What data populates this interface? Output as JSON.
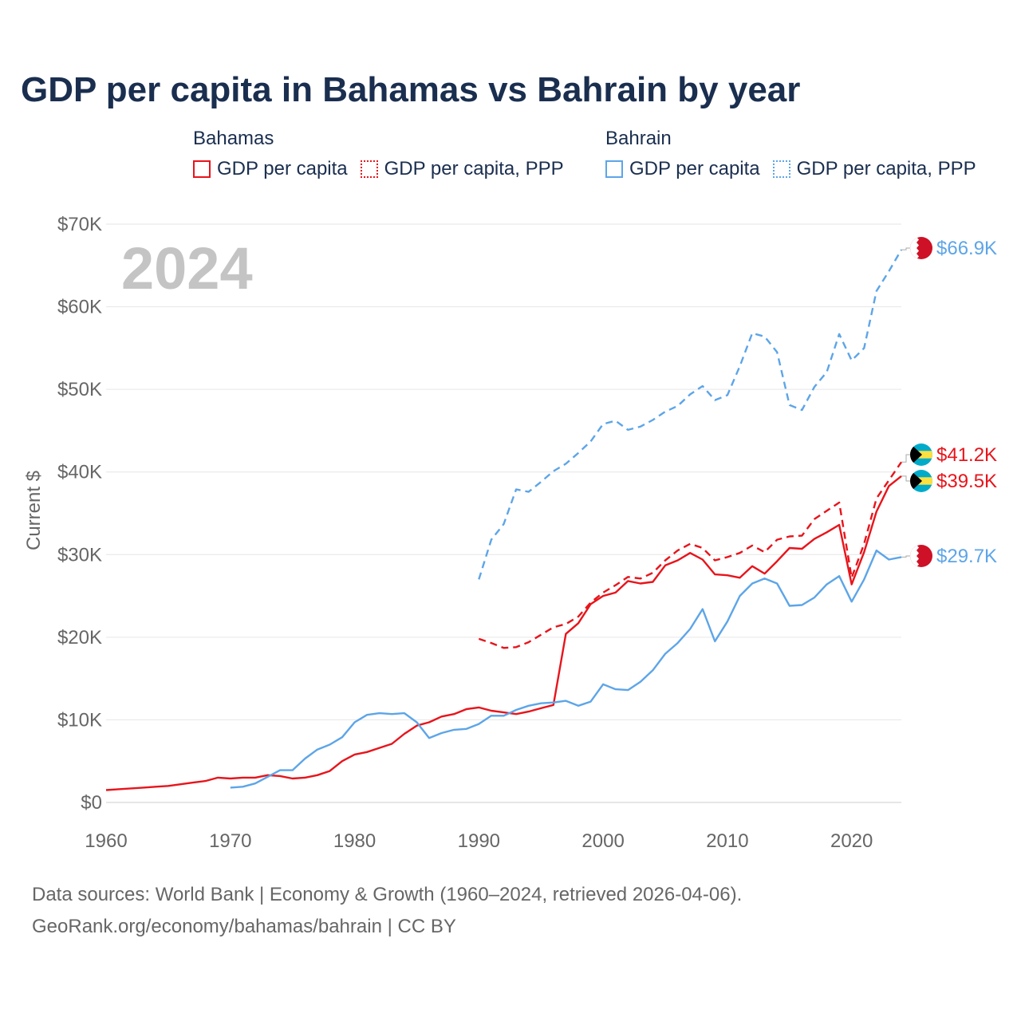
{
  "title": "GDP per capita in Bahamas vs Bahrain by year",
  "legend": {
    "groups": [
      {
        "name": "Bahamas",
        "color": "#e8141b",
        "items": [
          {
            "label": "GDP per capita",
            "style": "solid"
          },
          {
            "label": "GDP per capita, PPP",
            "style": "dashed"
          }
        ]
      },
      {
        "name": "Bahrain",
        "color": "#5da5e8",
        "items": [
          {
            "label": "GDP per capita",
            "style": "solid"
          },
          {
            "label": "GDP per capita, PPP",
            "style": "dashed"
          }
        ]
      }
    ]
  },
  "footer": {
    "line1": "Data sources: World Bank | Economy & Growth (1960–2024, retrieved 2026-04-06).",
    "line2": "GeoRank.org/economy/bahamas/bahrain | CC BY"
  },
  "chart_data": {
    "type": "line",
    "title": "GDP per capita in Bahamas vs Bahrain by year",
    "year_label": "2024",
    "xlabel": "",
    "ylabel": "Current $",
    "xlim": [
      1960,
      2024
    ],
    "ylim": [
      0,
      70000
    ],
    "x_ticks": [
      1960,
      1970,
      1980,
      1990,
      2000,
      2010,
      2020
    ],
    "y_ticks": [
      0,
      10000,
      20000,
      30000,
      40000,
      50000,
      60000,
      70000
    ],
    "y_tick_labels": [
      "$0",
      "$10K",
      "$20K",
      "$30K",
      "$40K",
      "$50K",
      "$60K",
      "$70K"
    ],
    "grid": true,
    "series": [
      {
        "name": "Bahamas GDP per capita",
        "country": "Bahamas",
        "color": "#e8141b",
        "dash": "solid",
        "end_label": "$39.5K",
        "x": [
          1960,
          1961,
          1962,
          1963,
          1964,
          1965,
          1966,
          1967,
          1968,
          1969,
          1970,
          1971,
          1972,
          1973,
          1974,
          1975,
          1976,
          1977,
          1978,
          1979,
          1980,
          1981,
          1982,
          1983,
          1984,
          1985,
          1986,
          1987,
          1988,
          1989,
          1990,
          1991,
          1992,
          1993,
          1994,
          1995,
          1996,
          1997,
          1998,
          1999,
          2000,
          2001,
          2002,
          2003,
          2004,
          2005,
          2006,
          2007,
          2008,
          2009,
          2010,
          2011,
          2012,
          2013,
          2014,
          2015,
          2016,
          2017,
          2018,
          2019,
          2020,
          2021,
          2022,
          2023,
          2024
        ],
        "values": [
          1500,
          1600,
          1700,
          1800,
          1900,
          2000,
          2200,
          2400,
          2600,
          3000,
          2900,
          3000,
          3000,
          3300,
          3200,
          2900,
          3000,
          3300,
          3800,
          5000,
          5800,
          6100,
          6600,
          7100,
          8300,
          9300,
          9700,
          10400,
          10700,
          11300,
          11500,
          11100,
          10900,
          10700,
          11000,
          11400,
          11800,
          20400,
          21700,
          24000,
          25000,
          25400,
          26800,
          26500,
          26700,
          28700,
          29300,
          30200,
          29400,
          27600,
          27500,
          27200,
          28600,
          27700,
          29200,
          30800,
          30700,
          31900,
          32700,
          33600,
          26400,
          30300,
          35200,
          38300,
          39500
        ]
      },
      {
        "name": "Bahamas GDP per capita, PPP",
        "country": "Bahamas",
        "color": "#e8141b",
        "dash": "dashed",
        "end_label": "$41.2K",
        "x": [
          1990,
          1991,
          1992,
          1993,
          1994,
          1995,
          1996,
          1997,
          1998,
          1999,
          2000,
          2001,
          2002,
          2003,
          2004,
          2005,
          2006,
          2007,
          2008,
          2009,
          2010,
          2011,
          2012,
          2013,
          2014,
          2015,
          2016,
          2017,
          2018,
          2019,
          2020,
          2021,
          2022,
          2023,
          2024
        ],
        "values": [
          19800,
          19300,
          18700,
          18800,
          19400,
          20300,
          21200,
          21600,
          22500,
          24200,
          25400,
          26300,
          27300,
          27100,
          27800,
          29300,
          30500,
          31300,
          30800,
          29300,
          29700,
          30200,
          31100,
          30300,
          31800,
          32200,
          32300,
          34300,
          35300,
          36300,
          27200,
          31300,
          36800,
          39000,
          41200
        ]
      },
      {
        "name": "Bahrain GDP per capita",
        "country": "Bahrain",
        "color": "#5da5e8",
        "dash": "solid",
        "end_label": "$29.7K",
        "x": [
          1970,
          1971,
          1972,
          1973,
          1974,
          1975,
          1976,
          1977,
          1978,
          1979,
          1980,
          1981,
          1982,
          1983,
          1984,
          1985,
          1986,
          1987,
          1988,
          1989,
          1990,
          1991,
          1992,
          1993,
          1994,
          1995,
          1996,
          1997,
          1998,
          1999,
          2000,
          2001,
          2002,
          2003,
          2004,
          2005,
          2006,
          2007,
          2008,
          2009,
          2010,
          2011,
          2012,
          2013,
          2014,
          2015,
          2016,
          2017,
          2018,
          2019,
          2020,
          2021,
          2022,
          2023,
          2024
        ],
        "values": [
          1800,
          1900,
          2300,
          3100,
          3900,
          3900,
          5300,
          6400,
          7000,
          7900,
          9700,
          10600,
          10800,
          10700,
          10800,
          9700,
          7800,
          8400,
          8800,
          8900,
          9500,
          10500,
          10500,
          11200,
          11700,
          12000,
          12100,
          12300,
          11700,
          12200,
          14300,
          13700,
          13600,
          14600,
          16000,
          18000,
          19300,
          21000,
          23400,
          19500,
          21900,
          25000,
          26500,
          27100,
          26500,
          23800,
          23900,
          24800,
          26400,
          27400,
          24300,
          27000,
          30500,
          29400,
          29700
        ]
      },
      {
        "name": "Bahrain GDP per capita, PPP",
        "country": "Bahrain",
        "color": "#5da5e8",
        "dash": "dashed",
        "end_label": "$66.9K",
        "x": [
          1990,
          1991,
          1992,
          1993,
          1994,
          1995,
          1996,
          1997,
          1998,
          1999,
          2000,
          2001,
          2002,
          2003,
          2004,
          2005,
          2006,
          2007,
          2008,
          2009,
          2010,
          2011,
          2012,
          2013,
          2014,
          2015,
          2016,
          2017,
          2018,
          2019,
          2020,
          2021,
          2022,
          2023,
          2024
        ],
        "values": [
          27000,
          31800,
          33700,
          37900,
          37600,
          38800,
          40100,
          41000,
          42300,
          43700,
          45800,
          46200,
          45100,
          45500,
          46300,
          47300,
          48000,
          49400,
          50400,
          48700,
          49300,
          52800,
          56800,
          56400,
          54500,
          48100,
          47500,
          50300,
          52100,
          56700,
          53500,
          55000,
          61900,
          64300,
          66900
        ]
      }
    ]
  }
}
